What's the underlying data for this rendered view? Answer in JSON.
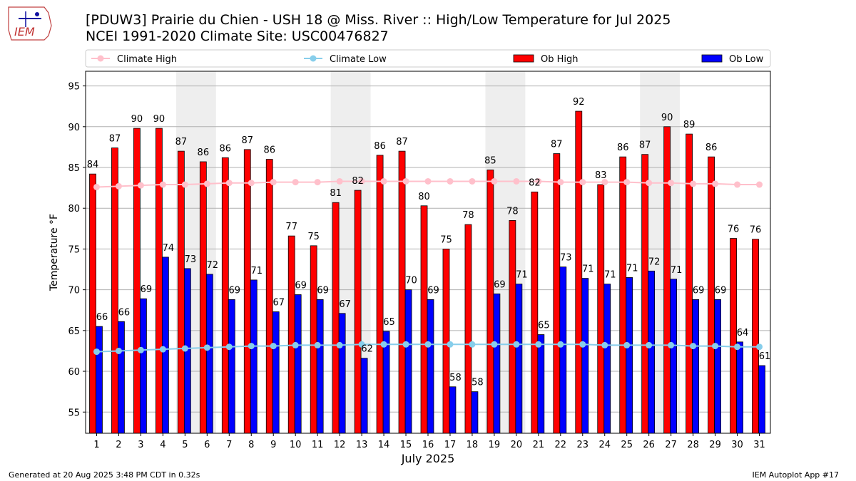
{
  "header": {
    "title_line1": "[PDUW3] Prairie du Chien - USH 18 @ Miss. River :: High/Low Temperature for Jul 2025",
    "title_line2": "NCEI 1991-2020 Climate Site: USC00476827",
    "logo_text": "IEM"
  },
  "footer": {
    "generated": "Generated at 20 Aug 2025 3:48 PM CDT in 0.32s",
    "app": "IEM Autoplot App #17"
  },
  "colors": {
    "ob_high": "#ff0000",
    "ob_low": "#0000ff",
    "climate_high": "#ffc0cb",
    "climate_low": "#87ceeb",
    "weekend_band": "#eeeeee",
    "grid": "#b0b0b0"
  },
  "chart_data": {
    "type": "bar",
    "title": "[PDUW3] Prairie du Chien - USH 18 @ Miss. River :: High/Low Temperature for Jul 2025",
    "subtitle": "NCEI 1991-2020 Climate Site: USC00476827",
    "xlabel": "July 2025",
    "ylabel": "Temperature °F",
    "ylim": [
      52.4,
      96.8
    ],
    "yticks": [
      55,
      60,
      65,
      70,
      75,
      80,
      85,
      90,
      95
    ],
    "grid": true,
    "legend_placement": "top",
    "categories": [
      "1",
      "2",
      "3",
      "4",
      "5",
      "6",
      "7",
      "8",
      "9",
      "10",
      "11",
      "12",
      "13",
      "14",
      "15",
      "16",
      "17",
      "18",
      "19",
      "20",
      "21",
      "22",
      "23",
      "24",
      "25",
      "26",
      "27",
      "28",
      "29",
      "30",
      "31"
    ],
    "weekend_bands": [
      [
        "5",
        "6"
      ],
      [
        "12",
        "13"
      ],
      [
        "19",
        "20"
      ],
      [
        "26",
        "27"
      ]
    ],
    "series": [
      {
        "name": "Ob High",
        "kind": "bar",
        "color": "#ff0000",
        "values": [
          84.2,
          87.4,
          89.8,
          89.8,
          87.0,
          85.7,
          86.2,
          87.2,
          86.0,
          76.6,
          75.4,
          80.7,
          82.2,
          86.5,
          87.0,
          80.3,
          75.0,
          78.0,
          84.7,
          78.5,
          82.0,
          86.7,
          91.9,
          82.9,
          86.3,
          86.6,
          90.0,
          89.1,
          86.3,
          76.3,
          76.2
        ],
        "labels": [
          "84",
          "87",
          "90",
          "90",
          "87",
          "86",
          "86",
          "87",
          "86",
          "77",
          "75",
          "81",
          "82",
          "86",
          "87",
          "80",
          "75",
          "78",
          "85",
          "78",
          "82",
          "87",
          "92",
          "83",
          "86",
          "87",
          "90",
          "89",
          "86",
          "76",
          "76"
        ]
      },
      {
        "name": "Ob Low",
        "kind": "bar",
        "color": "#0000ff",
        "values": [
          65.5,
          66.1,
          68.9,
          74.0,
          72.6,
          71.9,
          68.8,
          71.2,
          67.3,
          69.4,
          68.8,
          67.1,
          61.6,
          64.9,
          70.0,
          68.8,
          58.1,
          57.5,
          69.5,
          70.7,
          64.5,
          72.8,
          71.4,
          70.7,
          71.5,
          72.3,
          71.3,
          68.8,
          68.8,
          63.6,
          60.7
        ],
        "labels": [
          "66",
          "66",
          "69",
          "74",
          "73",
          "72",
          "69",
          "71",
          "67",
          "69",
          "69",
          "67",
          "62",
          "65",
          "70",
          "69",
          "58",
          "58",
          "69",
          "71",
          "65",
          "73",
          "71",
          "71",
          "71",
          "72",
          "71",
          "69",
          "69",
          "64",
          "61"
        ]
      },
      {
        "name": "Climate High",
        "kind": "line",
        "color": "#ffc0cb",
        "values": [
          82.6,
          82.7,
          82.8,
          82.9,
          82.9,
          83.0,
          83.1,
          83.1,
          83.2,
          83.2,
          83.2,
          83.3,
          83.3,
          83.3,
          83.3,
          83.3,
          83.3,
          83.3,
          83.3,
          83.3,
          83.3,
          83.2,
          83.2,
          83.2,
          83.2,
          83.1,
          83.1,
          83.0,
          83.0,
          82.9,
          82.9
        ]
      },
      {
        "name": "Climate Low",
        "kind": "line",
        "color": "#87ceeb",
        "values": [
          62.4,
          62.5,
          62.6,
          62.7,
          62.8,
          62.9,
          63.0,
          63.1,
          63.1,
          63.2,
          63.2,
          63.2,
          63.3,
          63.3,
          63.3,
          63.3,
          63.3,
          63.3,
          63.3,
          63.3,
          63.3,
          63.3,
          63.3,
          63.2,
          63.2,
          63.2,
          63.2,
          63.1,
          63.1,
          63.0,
          63.0
        ]
      }
    ]
  }
}
